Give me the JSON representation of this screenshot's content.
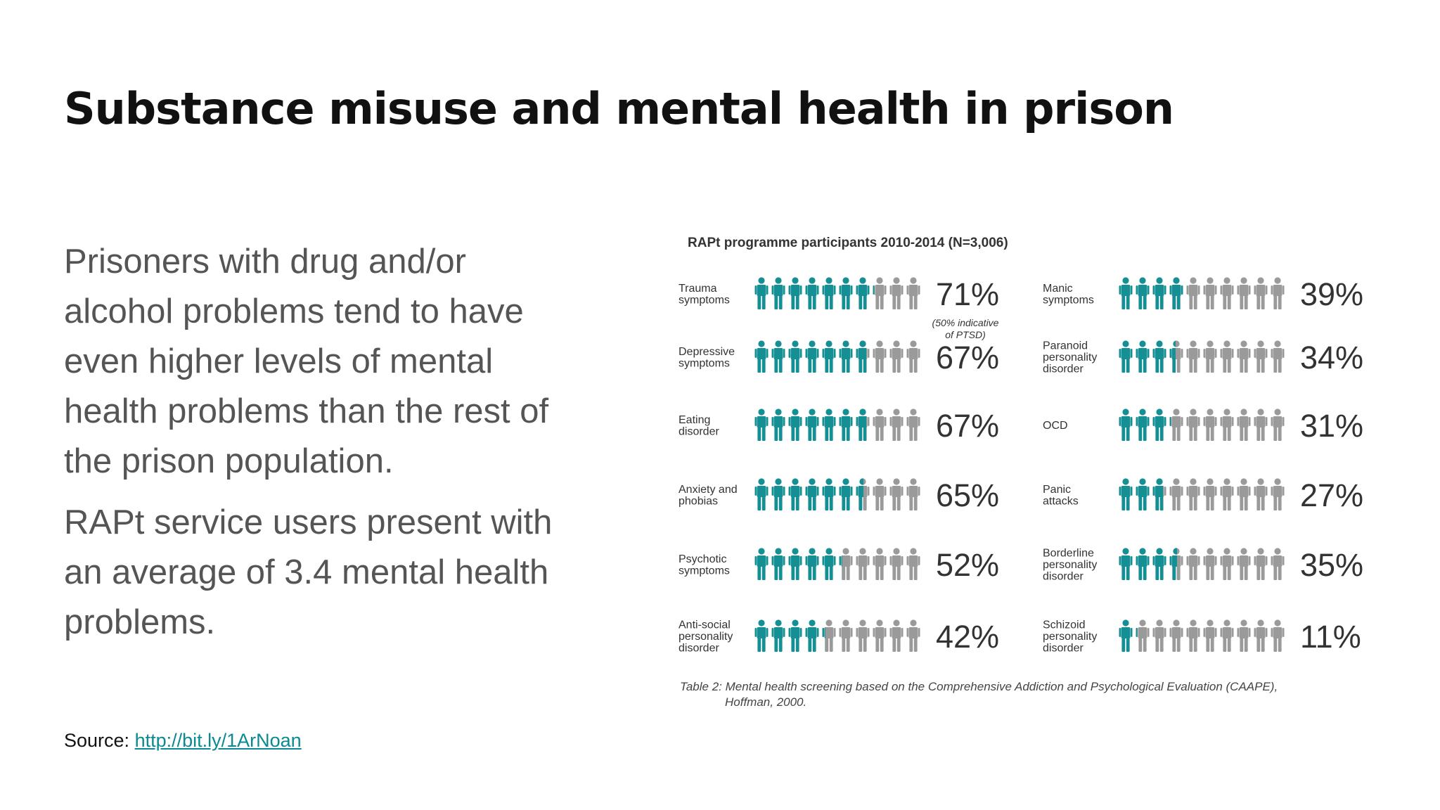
{
  "title": "Substance misuse and mental health in prison",
  "paragraphs": [
    "Prisoners with drug and/or alcohol problems tend to have even higher levels of mental health problems than the rest of the prison population.",
    "RAPt service users present with an average of 3.4 mental health problems."
  ],
  "source": {
    "label": "Source:",
    "link": "http://bit.ly/1ArNoan"
  },
  "colors": {
    "filled": "#148f94",
    "empty": "#9a9a9a",
    "link": "#0b8a93"
  },
  "icon": "person-icon",
  "chart_data": {
    "type": "pictograph",
    "title": "RAPt programme participants 2010-2014 (N=3,006)",
    "icons_per_row": 10,
    "unit": "%",
    "columns": [
      [
        {
          "label": "Trauma symptoms",
          "value": 71,
          "note": "(50% indicative of PTSD)"
        },
        {
          "label": "Depressive symptoms",
          "value": 67
        },
        {
          "label": "Eating disorder",
          "value": 67
        },
        {
          "label": "Anxiety and phobias",
          "value": 65
        },
        {
          "label": "Psychotic symptoms",
          "value": 52
        },
        {
          "label": "Anti-social personality disorder",
          "value": 42
        }
      ],
      [
        {
          "label": "Manic symptoms",
          "value": 39
        },
        {
          "label": "Paranoid personality disorder",
          "value": 34
        },
        {
          "label": "OCD",
          "value": 31
        },
        {
          "label": "Panic attacks",
          "value": 27
        },
        {
          "label": "Borderline personality disorder",
          "value": 35
        },
        {
          "label": "Schizoid personality disorder",
          "value": 11
        }
      ]
    ],
    "caption": [
      "Table 2: Mental health screening based on the Comprehensive Addiction and Psychological Evaluation (CAAPE),",
      "Hoffman, 2000."
    ]
  }
}
